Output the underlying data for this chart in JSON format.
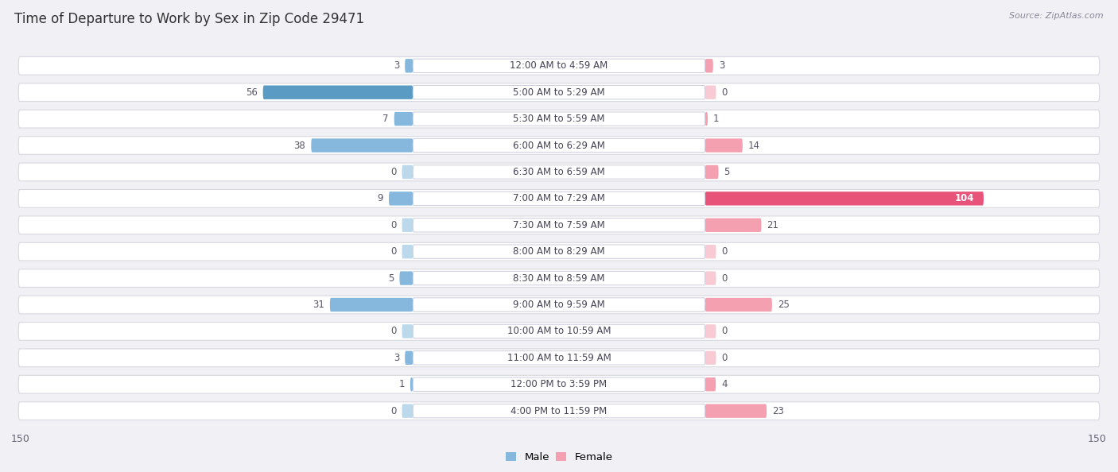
{
  "title": "Time of Departure to Work by Sex in Zip Code 29471",
  "source": "Source: ZipAtlas.com",
  "categories": [
    "12:00 AM to 4:59 AM",
    "5:00 AM to 5:29 AM",
    "5:30 AM to 5:59 AM",
    "6:00 AM to 6:29 AM",
    "6:30 AM to 6:59 AM",
    "7:00 AM to 7:29 AM",
    "7:30 AM to 7:59 AM",
    "8:00 AM to 8:29 AM",
    "8:30 AM to 8:59 AM",
    "9:00 AM to 9:59 AM",
    "10:00 AM to 10:59 AM",
    "11:00 AM to 11:59 AM",
    "12:00 PM to 3:59 PM",
    "4:00 PM to 11:59 PM"
  ],
  "male_values": [
    3,
    56,
    7,
    38,
    0,
    9,
    0,
    0,
    5,
    31,
    0,
    3,
    1,
    0
  ],
  "female_values": [
    3,
    0,
    1,
    14,
    5,
    104,
    21,
    0,
    0,
    25,
    0,
    0,
    4,
    23
  ],
  "male_color": "#85b8dc",
  "female_color": "#f4a0b0",
  "male_dark_color": "#5a9bc4",
  "female_dark_color": "#e8537a",
  "axis_max": 150,
  "row_bg_color": "#ffffff",
  "row_border_color": "#d8d8e0",
  "page_bg": "#f0f0f5",
  "center_label_bg": "#ffffff",
  "center_label_border": "#ccccdd",
  "title_color": "#333333",
  "value_color": "#555566",
  "label_fontsize": 8.5,
  "value_fontsize": 8.5,
  "title_fontsize": 12,
  "source_fontsize": 8,
  "axis_label_fontsize": 9
}
